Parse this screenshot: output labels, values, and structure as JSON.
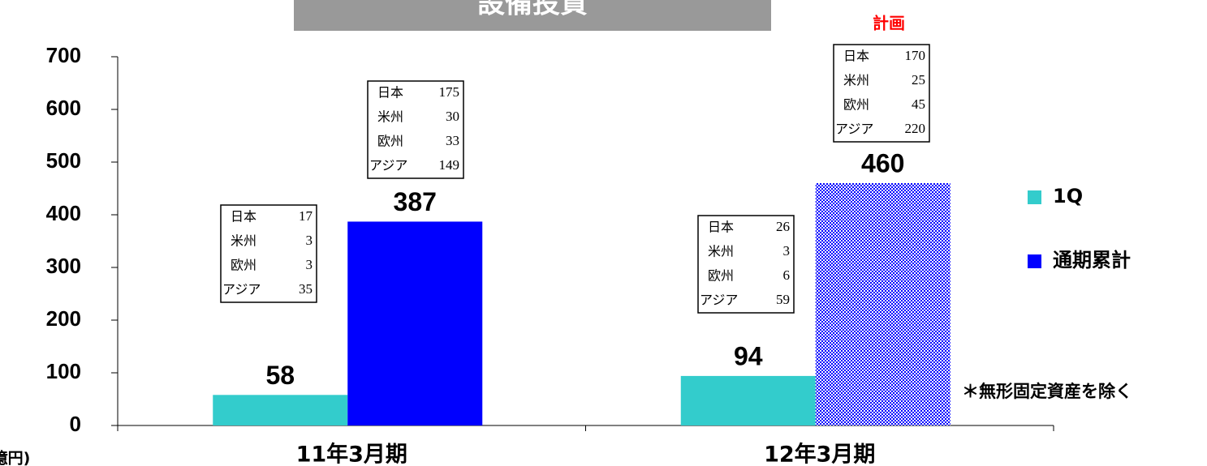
{
  "chart_data": {
    "type": "bar",
    "title": "設備投資",
    "y_label": "(億円)",
    "categories": [
      "11年3月期",
      "12年3月期"
    ],
    "ylim": [
      0,
      700
    ],
    "yticks": [
      0,
      100,
      200,
      300,
      400,
      500,
      600,
      700
    ],
    "regions": [
      "日本",
      "米州",
      "欧州",
      "アジア"
    ],
    "series": [
      {
        "name": "1Q",
        "color": "#33cccc",
        "values": [
          58,
          94
        ],
        "breakdown": [
          [
            17,
            3,
            3,
            35
          ],
          [
            26,
            3,
            6,
            59
          ]
        ]
      },
      {
        "name": "通期累計",
        "color": "#0000ff",
        "values": [
          387,
          460
        ],
        "breakdown": [
          [
            175,
            30,
            33,
            149
          ],
          [
            170,
            25,
            45,
            220
          ]
        ]
      }
    ],
    "annotations": [
      "計画",
      "＊無形固定資産を除く"
    ],
    "legend": "right"
  }
}
